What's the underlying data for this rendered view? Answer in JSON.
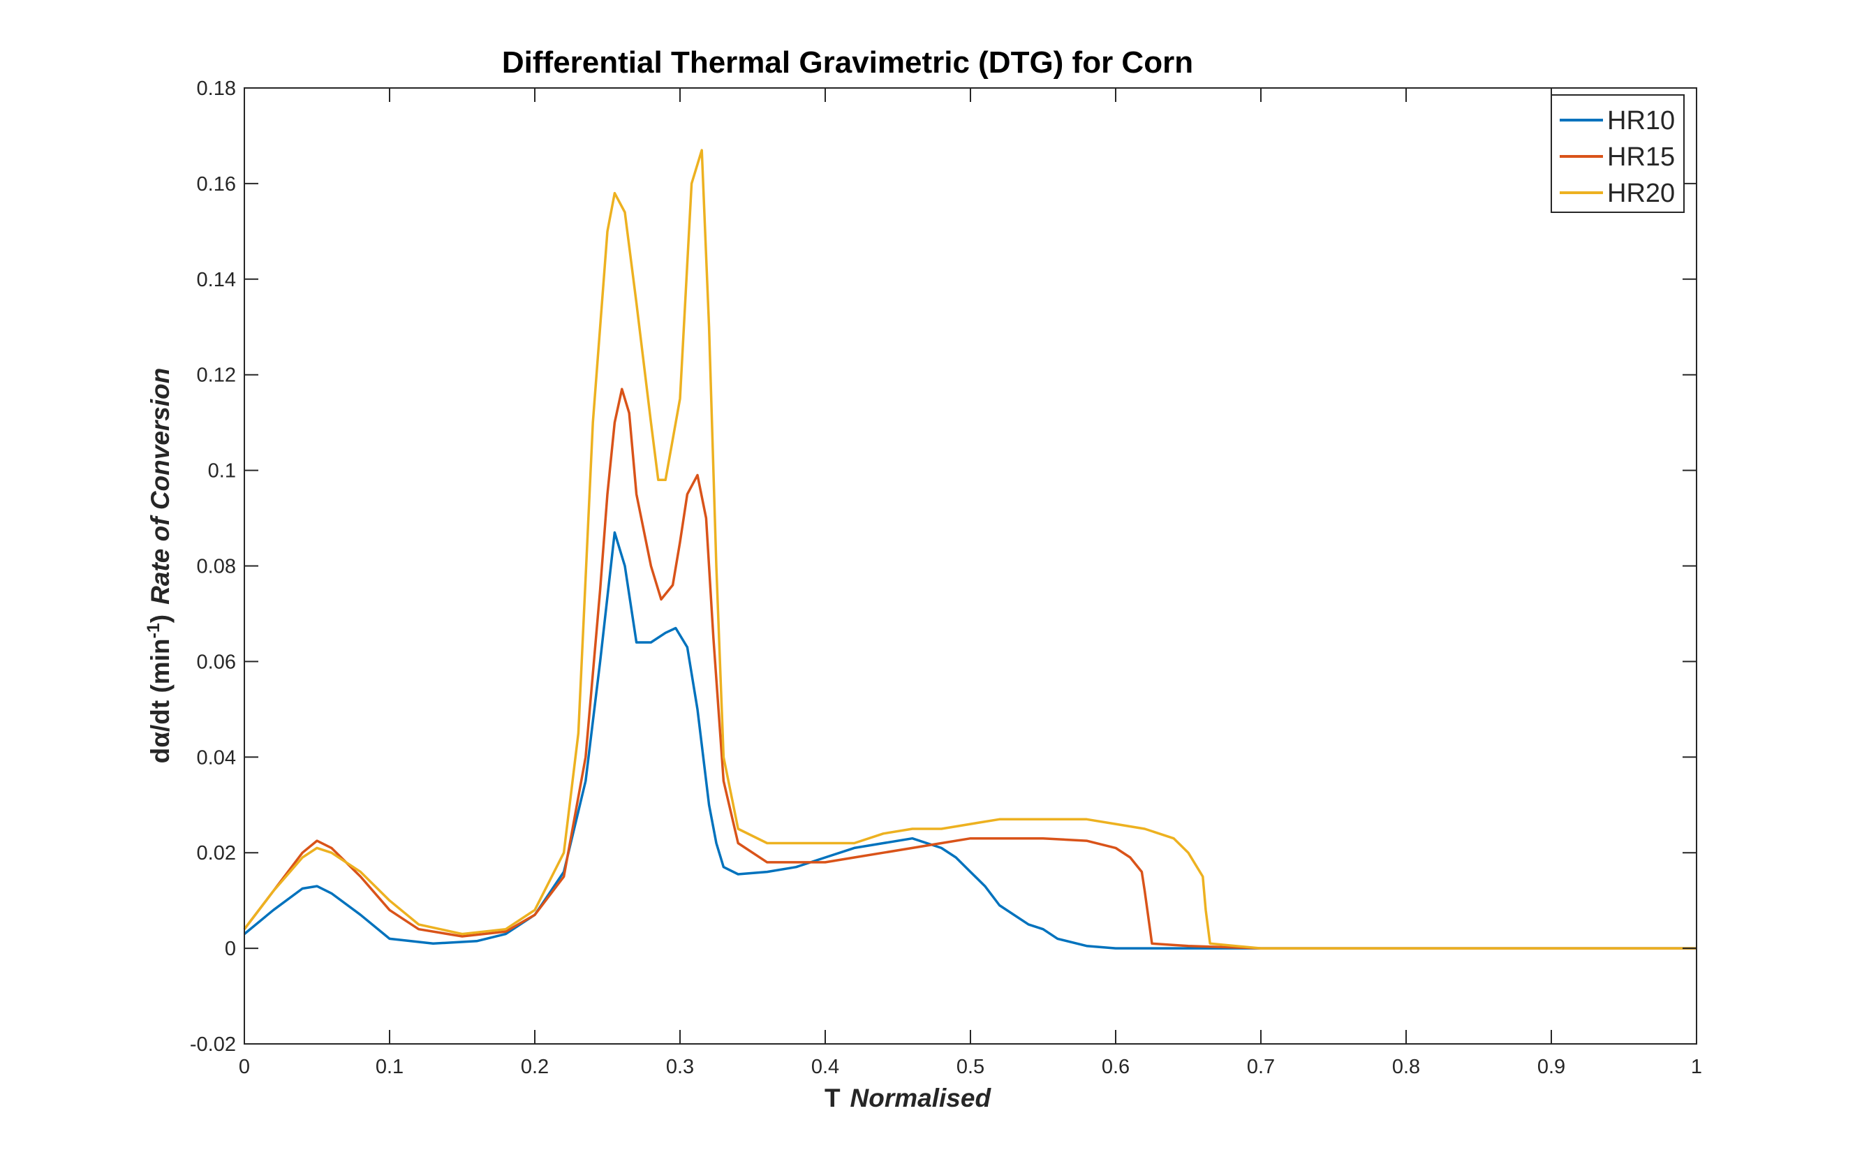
{
  "chart_data": {
    "type": "line",
    "title": "Differential Thermal Gravimetric (DTG) for Corn",
    "xlabel": {
      "main": "T",
      "italic": "Normalised"
    },
    "ylabel": {
      "main": "dα/dt (min",
      "superscript": "-1",
      "close": ")",
      "italic": "Rate of Conversion"
    },
    "xlim": [
      0,
      1
    ],
    "ylim": [
      -0.02,
      0.18
    ],
    "xticks": [
      0,
      0.1,
      0.2,
      0.3,
      0.4,
      0.5,
      0.6,
      0.7,
      0.8,
      0.9,
      1
    ],
    "xtick_labels": [
      "0",
      "0.1",
      "0.2",
      "0.3",
      "0.4",
      "0.5",
      "0.6",
      "0.7",
      "0.8",
      "0.9",
      "1"
    ],
    "yticks": [
      -0.02,
      0,
      0.02,
      0.04,
      0.06,
      0.08,
      0.1,
      0.12,
      0.14,
      0.16,
      0.18
    ],
    "ytick_labels": [
      "-0.02",
      "0",
      "0.02",
      "0.04",
      "0.06",
      "0.08",
      "0.1",
      "0.12",
      "0.14",
      "0.16",
      "0.18"
    ],
    "grid": false,
    "legend_position": "top-right",
    "series": [
      {
        "name": "HR10",
        "color": "#0072BD",
        "x": [
          0,
          0.02,
          0.04,
          0.05,
          0.06,
          0.08,
          0.1,
          0.13,
          0.16,
          0.18,
          0.2,
          0.22,
          0.235,
          0.245,
          0.255,
          0.262,
          0.27,
          0.28,
          0.29,
          0.297,
          0.305,
          0.312,
          0.32,
          0.325,
          0.33,
          0.34,
          0.36,
          0.38,
          0.4,
          0.42,
          0.44,
          0.46,
          0.48,
          0.49,
          0.5,
          0.51,
          0.52,
          0.54,
          0.55,
          0.56,
          0.58,
          0.6,
          0.65,
          0.7,
          0.8,
          0.9,
          1
        ],
        "y": [
          0.003,
          0.008,
          0.0125,
          0.013,
          0.0115,
          0.007,
          0.002,
          0.001,
          0.0015,
          0.003,
          0.007,
          0.016,
          0.035,
          0.06,
          0.087,
          0.08,
          0.064,
          0.064,
          0.066,
          0.067,
          0.063,
          0.05,
          0.03,
          0.022,
          0.017,
          0.0155,
          0.016,
          0.017,
          0.019,
          0.021,
          0.022,
          0.023,
          0.021,
          0.019,
          0.016,
          0.013,
          0.009,
          0.005,
          0.004,
          0.002,
          0.0005,
          0,
          0,
          0,
          0,
          0,
          0
        ]
      },
      {
        "name": "HR15",
        "color": "#D95319",
        "x": [
          0,
          0.02,
          0.04,
          0.05,
          0.06,
          0.08,
          0.1,
          0.12,
          0.15,
          0.18,
          0.2,
          0.22,
          0.235,
          0.245,
          0.25,
          0.255,
          0.26,
          0.265,
          0.27,
          0.28,
          0.287,
          0.295,
          0.3,
          0.305,
          0.312,
          0.318,
          0.323,
          0.33,
          0.34,
          0.36,
          0.38,
          0.4,
          0.42,
          0.44,
          0.46,
          0.48,
          0.5,
          0.52,
          0.55,
          0.58,
          0.6,
          0.61,
          0.618,
          0.62,
          0.625,
          0.65,
          0.7,
          0.8,
          0.9,
          1
        ],
        "y": [
          0.004,
          0.012,
          0.02,
          0.0225,
          0.021,
          0.015,
          0.008,
          0.004,
          0.0025,
          0.0035,
          0.007,
          0.015,
          0.04,
          0.075,
          0.095,
          0.11,
          0.117,
          0.112,
          0.095,
          0.08,
          0.073,
          0.076,
          0.085,
          0.095,
          0.099,
          0.09,
          0.065,
          0.035,
          0.022,
          0.018,
          0.018,
          0.018,
          0.019,
          0.02,
          0.021,
          0.022,
          0.023,
          0.023,
          0.023,
          0.0225,
          0.021,
          0.019,
          0.016,
          0.012,
          0.001,
          0.0005,
          0,
          0,
          0,
          0
        ]
      },
      {
        "name": "HR20",
        "color": "#EDB120",
        "x": [
          0,
          0.02,
          0.04,
          0.05,
          0.06,
          0.08,
          0.1,
          0.12,
          0.15,
          0.18,
          0.2,
          0.22,
          0.23,
          0.24,
          0.25,
          0.255,
          0.262,
          0.27,
          0.28,
          0.285,
          0.29,
          0.3,
          0.308,
          0.315,
          0.32,
          0.325,
          0.33,
          0.34,
          0.36,
          0.4,
          0.42,
          0.44,
          0.46,
          0.48,
          0.5,
          0.52,
          0.55,
          0.58,
          0.6,
          0.62,
          0.64,
          0.65,
          0.66,
          0.662,
          0.665,
          0.7,
          0.8,
          0.9,
          1
        ],
        "y": [
          0.004,
          0.012,
          0.019,
          0.021,
          0.02,
          0.016,
          0.01,
          0.005,
          0.003,
          0.004,
          0.008,
          0.02,
          0.045,
          0.11,
          0.15,
          0.158,
          0.154,
          0.135,
          0.11,
          0.098,
          0.098,
          0.115,
          0.16,
          0.167,
          0.13,
          0.08,
          0.04,
          0.025,
          0.022,
          0.022,
          0.022,
          0.024,
          0.025,
          0.025,
          0.026,
          0.027,
          0.027,
          0.027,
          0.026,
          0.025,
          0.023,
          0.02,
          0.015,
          0.008,
          0.001,
          0,
          0,
          0,
          0
        ]
      }
    ]
  }
}
